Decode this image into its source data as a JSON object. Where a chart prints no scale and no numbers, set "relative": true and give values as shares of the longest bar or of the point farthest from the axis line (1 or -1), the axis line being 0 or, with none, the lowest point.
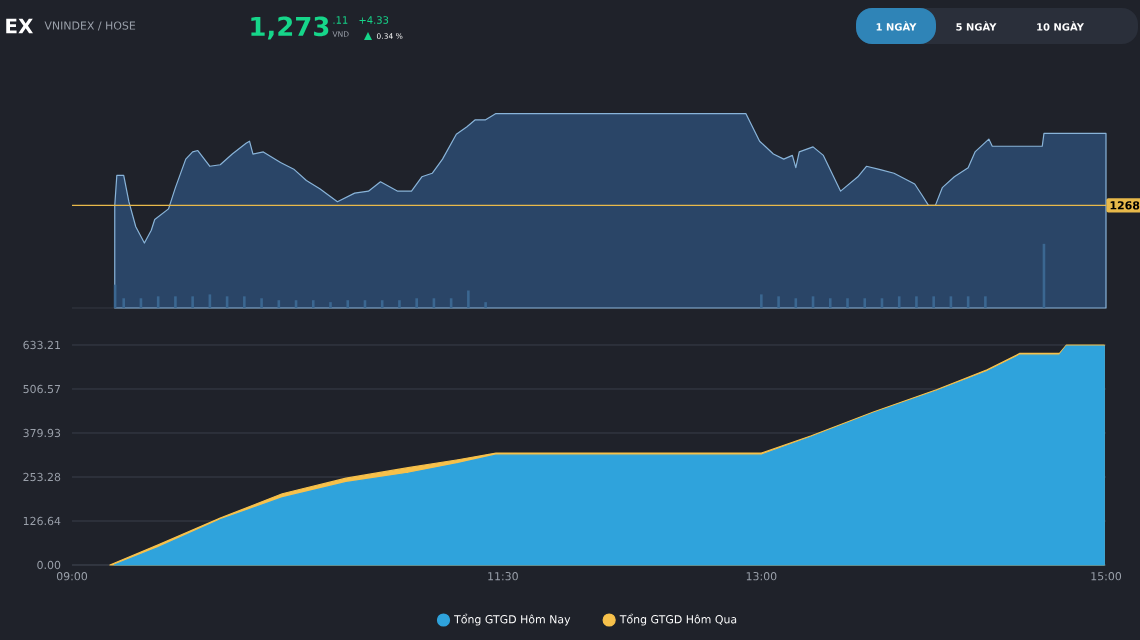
{
  "chart_data": [
    {
      "type": "area",
      "title": "EX",
      "subtitle": "VNINDEX / HOSE",
      "annotations": [
        "1,273",
        ".11",
        "VND",
        "+4.33",
        "0.34 %",
        "1 NGÀY",
        "5 NGÀY",
        "10 NGÀY",
        {
          "text": "1268",
          "x": 15,
          "y": 0.528
        }
      ],
      "relative": true,
      "xlim": [
        9,
        15
      ],
      "series": [
        {
          "type": "bar",
          "color": "#3b6791",
          "x": [
            9.25,
            9.3,
            9.4,
            9.5,
            9.6,
            9.7,
            9.8,
            9.9,
            10.0,
            10.1,
            10.2,
            10.3,
            10.4,
            10.5,
            10.6,
            10.7,
            10.8,
            10.9,
            11.0,
            11.1,
            11.2,
            11.3,
            11.4,
            13.0,
            13.1,
            13.2,
            13.3,
            13.4,
            13.5,
            13.6,
            13.7,
            13.8,
            13.9,
            14.0,
            14.1,
            14.2,
            14.3,
            14.64
          ],
          "values": [
            0.12,
            0.05,
            0.05,
            0.06,
            0.06,
            0.06,
            0.07,
            0.06,
            0.06,
            0.05,
            0.04,
            0.04,
            0.04,
            0.03,
            0.04,
            0.04,
            0.04,
            0.04,
            0.05,
            0.05,
            0.05,
            0.09,
            0.03,
            0.07,
            0.06,
            0.05,
            0.06,
            0.05,
            0.05,
            0.05,
            0.05,
            0.06,
            0.06,
            0.06,
            0.06,
            0.06,
            0.06,
            0.33
          ]
        },
        {
          "color": "#89b4d9",
          "x": [
            9.248,
            9.26,
            9.3,
            9.33,
            9.37,
            9.42,
            9.46,
            9.48,
            9.56,
            9.6,
            9.66,
            9.7,
            9.73,
            9.8,
            9.86,
            9.93,
            10.01,
            10.03,
            10.05,
            10.11,
            10.21,
            10.29,
            10.36,
            10.44,
            10.54,
            10.64,
            10.72,
            10.79,
            10.89,
            10.97,
            11.03,
            11.09,
            11.15,
            11.23,
            11.29,
            11.34,
            11.4,
            11.46,
            12.91,
            12.99,
            13.07,
            13.13,
            13.18,
            13.2,
            13.22,
            13.3,
            13.36,
            13.46,
            13.56,
            13.61,
            13.69,
            13.77,
            13.89,
            13.93,
            13.97,
            14.01,
            14.05,
            14.12,
            14.2,
            14.24,
            14.32,
            14.34,
            14.63,
            14.64,
            15.0
          ],
          "values": [
            0.528,
            0.682,
            0.682,
            0.547,
            0.418,
            0.334,
            0.4,
            0.455,
            0.51,
            0.619,
            0.766,
            0.803,
            0.81,
            0.729,
            0.737,
            0.792,
            0.847,
            0.858,
            0.792,
            0.803,
            0.748,
            0.712,
            0.656,
            0.612,
            0.547,
            0.591,
            0.601,
            0.649,
            0.601,
            0.601,
            0.675,
            0.693,
            0.766,
            0.894,
            0.931,
            0.968,
            0.968,
            1,
            1,
            0.858,
            0.792,
            0.766,
            0.785,
            0.722,
            0.803,
            0.829,
            0.785,
            0.601,
            0.675,
            0.729,
            0.712,
            0.693,
            0.638,
            0.584,
            0.528,
            0.528,
            0.619,
            0.675,
            0.722,
            0.803,
            0.869,
            0.832,
            0.832,
            0.898,
            0.898
          ]
        }
      ],
      "ref_lines": [
        {
          "axis": "y",
          "value": 0.528,
          "color": "#e8b94a"
        }
      ]
    },
    {
      "type": "area",
      "xlim": [
        9,
        15
      ],
      "ylim": [
        0,
        633.21
      ],
      "xticks": [
        {
          "value": 9,
          "label": "09:00"
        },
        {
          "value": 11.5,
          "label": "11:30"
        },
        {
          "value": 13,
          "label": "13:00"
        },
        {
          "value": 15,
          "label": "15:00"
        }
      ],
      "yticks": [
        {
          "value": 0,
          "label": "0.00"
        },
        126.64,
        253.28,
        379.93,
        506.57,
        633.21
      ],
      "grid": "y",
      "legend": "bottom",
      "series": [
        {
          "name": "Tổng GTGD Hôm Nay",
          "color": "#2fa3dc",
          "x": [
            9.245,
            9.5,
            9.855,
            10.22,
            10.59,
            10.95,
            11.24,
            11.46,
            13.0,
            13.29,
            13.65,
            14.02,
            14.31,
            14.5,
            14.73,
            14.77,
            14.99
          ],
          "values": [
            0,
            50,
            129,
            193,
            237,
            264,
            292,
            316,
            316,
            368,
            437,
            501,
            557,
            604,
            604,
            630,
            630
          ]
        },
        {
          "name": "Tổng GTGD Hôm Qua",
          "color": "#f7c14b",
          "x": [
            9.22,
            9.5,
            9.86,
            10.22,
            10.59,
            10.95,
            11.24,
            11.46,
            13.0,
            13.29,
            13.65,
            14.02,
            14.31,
            14.5,
            14.73,
            14.77,
            14.99
          ],
          "values": [
            0,
            58,
            135,
            205,
            250,
            280,
            303,
            322,
            322,
            372,
            440,
            505,
            562,
            609,
            609,
            633,
            633
          ]
        }
      ]
    }
  ]
}
